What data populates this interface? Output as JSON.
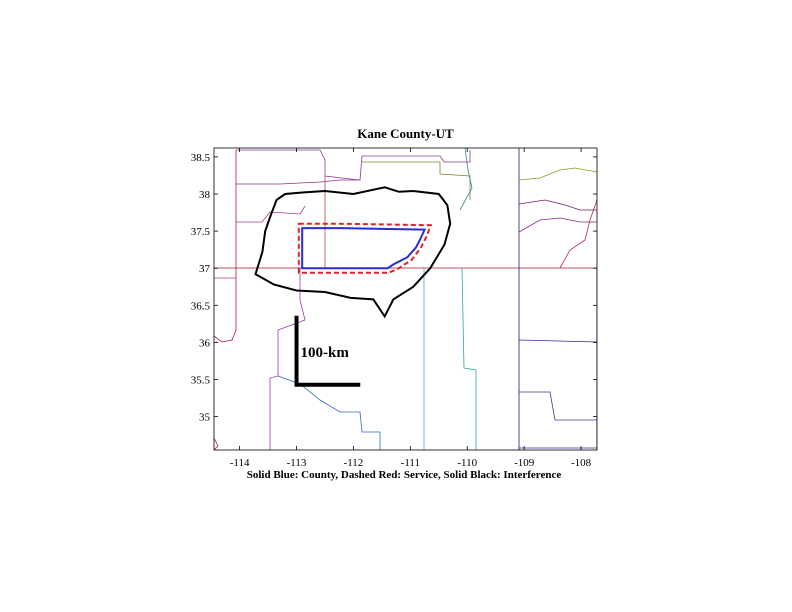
{
  "title": "Kane County-UT",
  "caption": "Solid Blue: County, Dashed Red: Service, Solid Black: Interference",
  "scale_bar": {
    "label": "100-km"
  },
  "axes": {
    "x_ticks": [
      "-114",
      "-113",
      "-112",
      "-111",
      "-110",
      "-109",
      "-108"
    ],
    "y_ticks": [
      "38.5",
      "38",
      "37.5",
      "37",
      "36.5",
      "36",
      "35.5",
      "35"
    ]
  },
  "chart_data": {
    "type": "map",
    "title": "Kane County-UT",
    "xlabel": "",
    "ylabel": "",
    "xlim": [
      -114.45,
      -107.72
    ],
    "ylim": [
      34.55,
      38.62
    ],
    "grid": false,
    "legend": "Solid Blue: County, Dashed Red: Service, Solid Black: Interference",
    "colors": {
      "county": "#2b2bd6",
      "service": "#e0202a",
      "interference": "#000000"
    },
    "county": [
      [
        -112.9,
        37.54
      ],
      [
        -112.2,
        37.54
      ],
      [
        -111.5,
        37.53
      ],
      [
        -110.75,
        37.52
      ],
      [
        -110.82,
        37.4
      ],
      [
        -110.9,
        37.28
      ],
      [
        -111.05,
        37.15
      ],
      [
        -111.3,
        37.05
      ],
      [
        -111.4,
        37.0
      ],
      [
        -112.9,
        37.0
      ],
      [
        -112.9,
        37.54
      ]
    ],
    "service": [
      [
        -112.96,
        37.6
      ],
      [
        -112.3,
        37.6
      ],
      [
        -111.5,
        37.59
      ],
      [
        -110.64,
        37.58
      ],
      [
        -110.72,
        37.42
      ],
      [
        -110.82,
        37.27
      ],
      [
        -110.98,
        37.11
      ],
      [
        -111.22,
        36.99
      ],
      [
        -111.38,
        36.94
      ],
      [
        -112.96,
        36.94
      ],
      [
        -112.96,
        37.6
      ]
    ],
    "interference": [
      [
        -113.45,
        37.72
      ],
      [
        -113.35,
        37.92
      ],
      [
        -113.2,
        38.0
      ],
      [
        -112.9,
        38.02
      ],
      [
        -112.5,
        38.04
      ],
      [
        -112.0,
        38.0
      ],
      [
        -111.45,
        38.09
      ],
      [
        -111.2,
        38.03
      ],
      [
        -110.95,
        38.04
      ],
      [
        -110.5,
        38.0
      ],
      [
        -110.35,
        37.85
      ],
      [
        -110.3,
        37.6
      ],
      [
        -110.4,
        37.32
      ],
      [
        -110.65,
        37.0
      ],
      [
        -110.95,
        36.75
      ],
      [
        -111.3,
        36.58
      ],
      [
        -111.45,
        36.35
      ],
      [
        -111.65,
        36.58
      ],
      [
        -112.05,
        36.6
      ],
      [
        -112.5,
        36.68
      ],
      [
        -113.0,
        36.7
      ],
      [
        -113.4,
        36.78
      ],
      [
        -113.72,
        36.92
      ],
      [
        -113.6,
        37.22
      ],
      [
        -113.55,
        37.5
      ],
      [
        -113.45,
        37.72
      ]
    ],
    "scale_bar": {
      "label": "100-km",
      "origin": [
        -113.0,
        35.43
      ],
      "vertical_to_lat": 36.36,
      "horizontal_to_lon": -111.88
    }
  }
}
